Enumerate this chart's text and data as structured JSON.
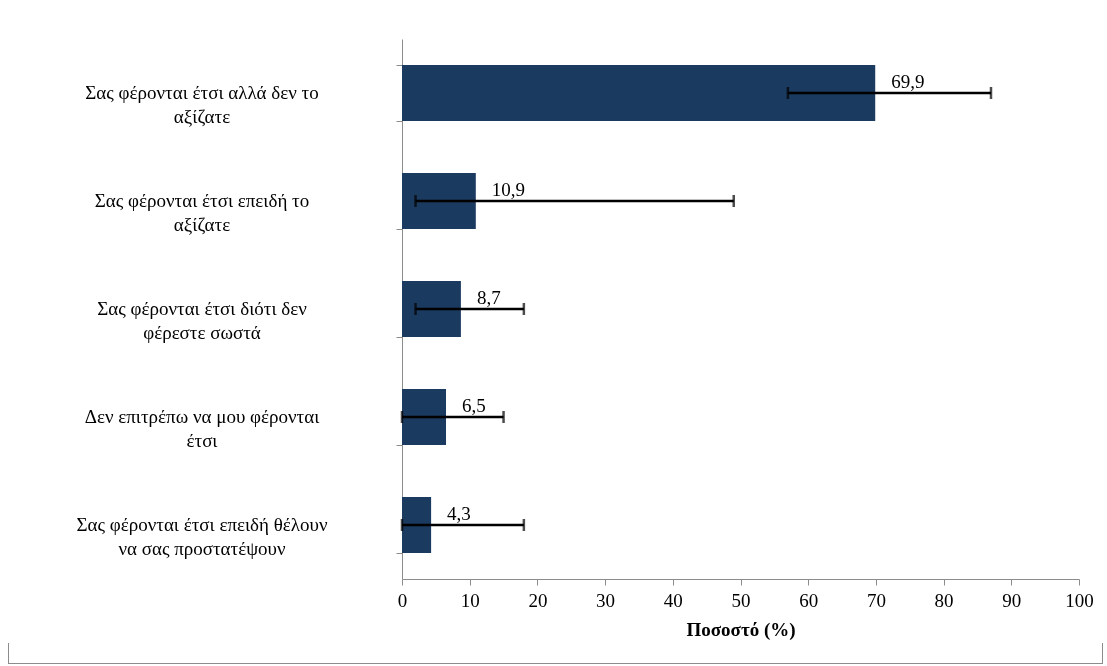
{
  "chart_data": {
    "type": "bar",
    "orientation": "horizontal",
    "xlabel": "Ποσοστό (%)",
    "categories": [
      "Σας φέρονται έτσι αλλά δεν το αξίζατε",
      "Σας φέρονται έτσι επειδή το αξίζατε",
      "Σας φέρονται έτσι διότι δεν φέρεστε σωστά",
      "Δεν επιτρέπω να μου φέρονται έτσι",
      "Σας φέρονται έτσι επειδή θέλουν να σας προστατέψουν"
    ],
    "values": [
      69.9,
      10.9,
      8.7,
      6.5,
      4.3
    ],
    "value_labels": [
      "69,9",
      "10,9",
      "8,7",
      "6,5",
      "4,3"
    ],
    "errors": [
      [
        57,
        87
      ],
      [
        2,
        49
      ],
      [
        2,
        18
      ],
      [
        0,
        15
      ],
      [
        0,
        18
      ]
    ],
    "color": "#1b3a5f",
    "xlim": [
      0,
      100
    ],
    "xticks": [
      0,
      10,
      20,
      30,
      40,
      50,
      60,
      70,
      80,
      90,
      100
    ],
    "grid": false
  }
}
